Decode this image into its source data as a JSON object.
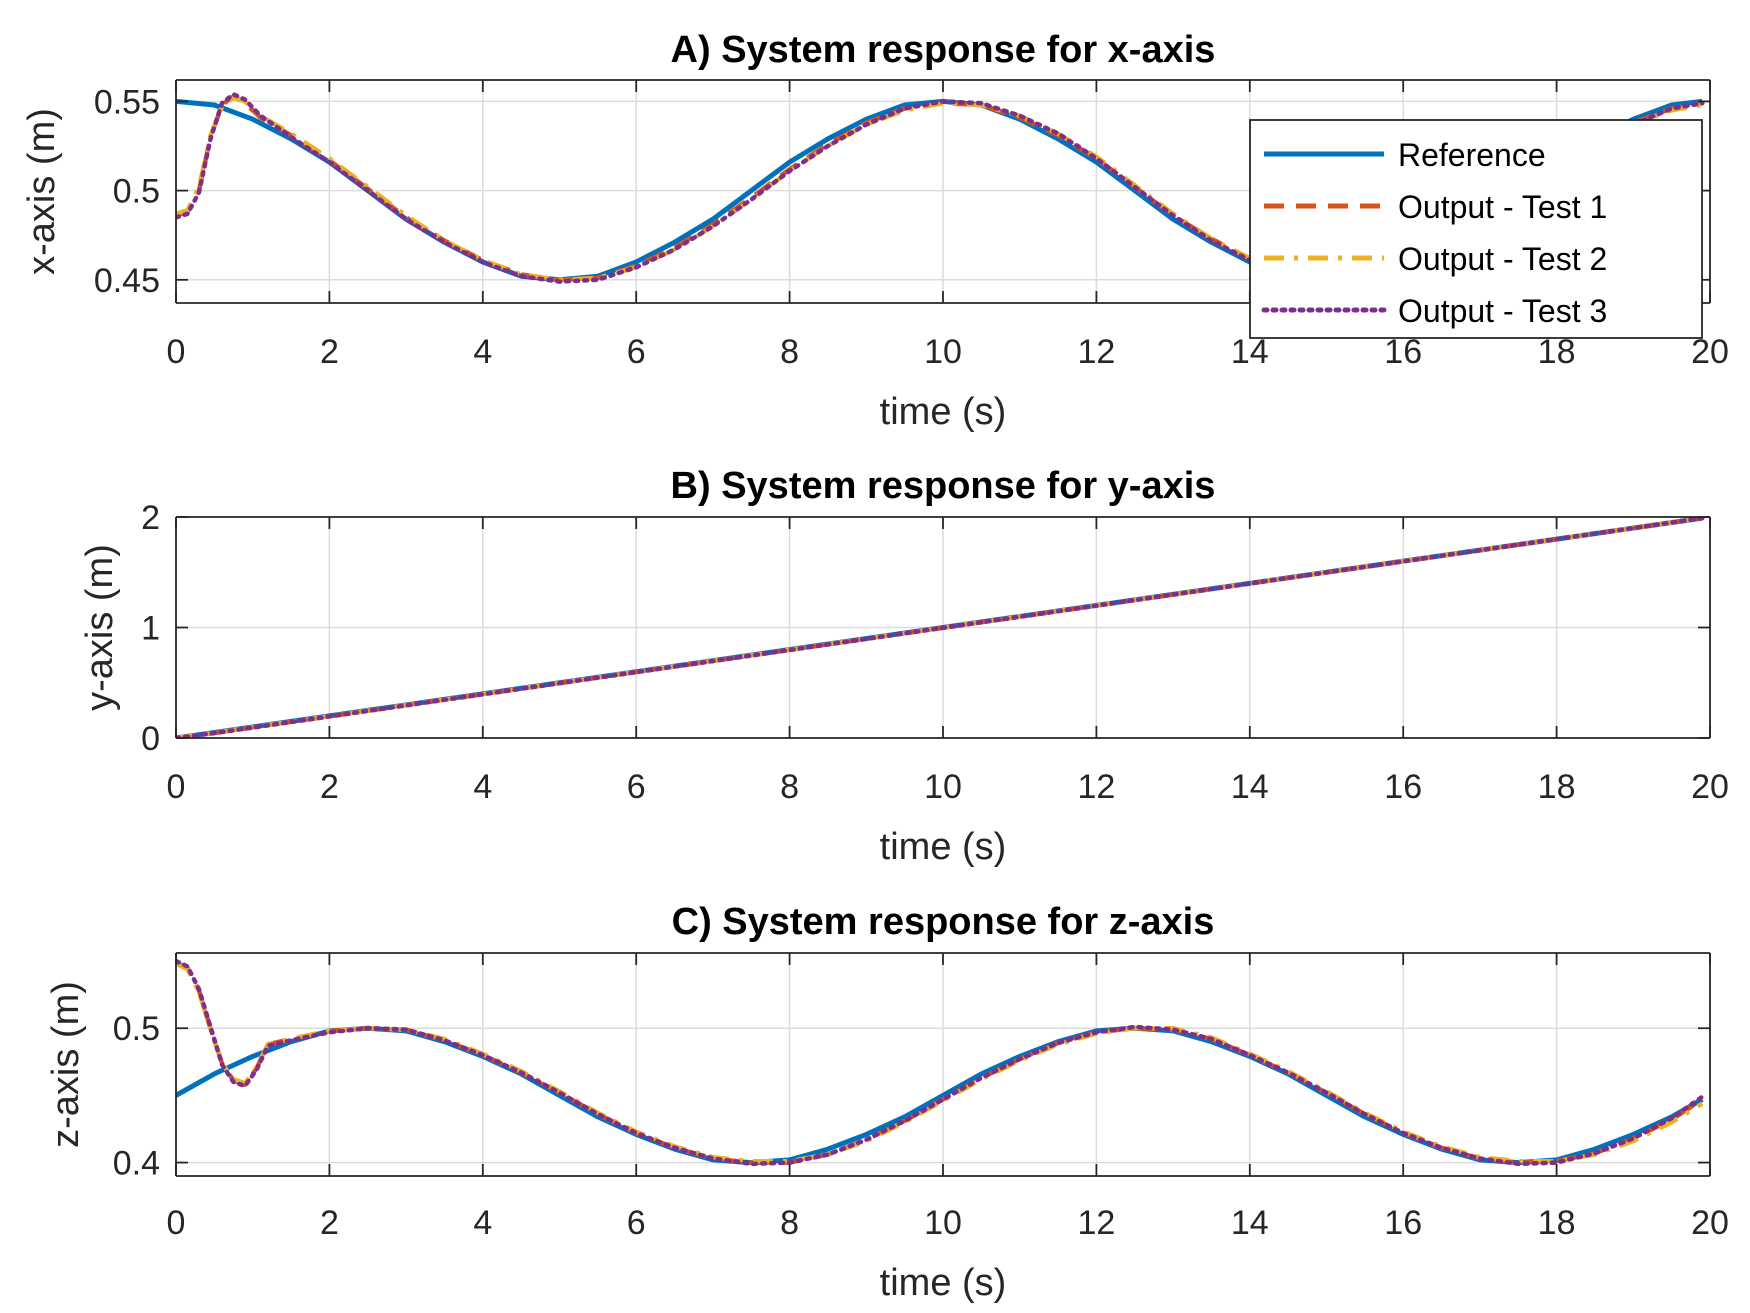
{
  "chart_data": [
    {
      "type": "line",
      "title": "A) System response for x-axis",
      "xlabel": "time (s)",
      "ylabel": "x-axis (m)",
      "xlim": [
        0,
        20
      ],
      "ylim": [
        0.437,
        0.562
      ],
      "xticks": [
        0,
        2,
        4,
        6,
        8,
        10,
        12,
        14,
        16,
        18,
        20
      ],
      "xticklabels": [
        "0",
        "2",
        "4",
        "6",
        "8",
        "10",
        "12",
        "14",
        "16",
        "18",
        "20"
      ],
      "yticks": [
        0.45,
        0.5,
        0.55
      ],
      "yticklabels": [
        "0.45",
        "0.5",
        "0.55"
      ],
      "grid": true,
      "legend_position": "top-right",
      "legend": [
        "Reference",
        "Output - Test 1",
        "Output - Test 2",
        "Output - Test 3"
      ],
      "series": [
        {
          "name": "Reference",
          "color": "#0072BD",
          "style": "solid",
          "x": [
            0,
            0.5,
            1,
            1.5,
            2,
            2.5,
            3,
            3.5,
            4,
            4.5,
            5,
            5.5,
            6,
            6.5,
            7,
            7.5,
            8,
            8.5,
            9,
            9.5,
            10,
            10.5,
            11,
            11.5,
            12,
            12.5,
            13,
            13.5,
            14,
            14.5,
            15,
            15.5,
            16,
            16.5,
            17,
            17.5,
            18,
            18.5,
            19,
            19.5,
            19.9
          ],
          "y": [
            0.55,
            0.548,
            0.54,
            0.529,
            0.516,
            0.5,
            0.484,
            0.471,
            0.46,
            0.452,
            0.45,
            0.452,
            0.46,
            0.471,
            0.484,
            0.5,
            0.516,
            0.529,
            0.54,
            0.548,
            0.55,
            0.548,
            0.54,
            0.529,
            0.516,
            0.5,
            0.484,
            0.471,
            0.46,
            0.452,
            0.45,
            0.452,
            0.46,
            0.471,
            0.484,
            0.5,
            0.516,
            0.529,
            0.54,
            0.548,
            0.55
          ]
        },
        {
          "name": "Output - Test 1",
          "color": "#D95319",
          "style": "dashed",
          "x": [
            0,
            0.15,
            0.3,
            0.45,
            0.6,
            0.75,
            0.9,
            1.1,
            1.5,
            2,
            2.5,
            3,
            3.5,
            4,
            4.5,
            5,
            5.5,
            6,
            6.5,
            7,
            7.5,
            8,
            8.5,
            9,
            9.5,
            10,
            10.5,
            11,
            11.5,
            12,
            12.5,
            13,
            13.5,
            14,
            14.5,
            15,
            15.5,
            16,
            16.5,
            17,
            17.5,
            18,
            18.5,
            19,
            19.5,
            19.9
          ],
          "y": [
            0.486,
            0.488,
            0.5,
            0.53,
            0.548,
            0.553,
            0.549,
            0.541,
            0.531,
            0.517,
            0.501,
            0.485,
            0.472,
            0.461,
            0.453,
            0.45,
            0.451,
            0.458,
            0.468,
            0.481,
            0.496,
            0.512,
            0.526,
            0.538,
            0.546,
            0.549,
            0.548,
            0.541,
            0.531,
            0.518,
            0.502,
            0.486,
            0.473,
            0.462,
            0.453,
            0.45,
            0.451,
            0.458,
            0.468,
            0.481,
            0.496,
            0.512,
            0.526,
            0.538,
            0.546,
            0.549
          ]
        },
        {
          "name": "Output - Test 2",
          "color": "#EDB120",
          "style": "dashdot",
          "x": [
            0,
            0.15,
            0.3,
            0.45,
            0.6,
            0.75,
            0.9,
            1.1,
            1.5,
            2,
            2.5,
            3,
            3.5,
            4,
            4.5,
            5,
            5.5,
            6,
            6.5,
            7,
            7.5,
            8,
            8.5,
            9,
            9.5,
            10,
            10.5,
            11,
            11.5,
            12,
            12.5,
            13,
            13.5,
            14,
            14.5,
            15,
            15.5,
            16,
            16.5,
            17,
            17.5,
            18,
            18.5,
            19,
            19.5,
            19.9
          ],
          "y": [
            0.487,
            0.489,
            0.502,
            0.531,
            0.547,
            0.552,
            0.55,
            0.542,
            0.532,
            0.518,
            0.502,
            0.486,
            0.472,
            0.461,
            0.453,
            0.45,
            0.451,
            0.457,
            0.467,
            0.48,
            0.495,
            0.511,
            0.525,
            0.537,
            0.545,
            0.549,
            0.548,
            0.542,
            0.532,
            0.519,
            0.503,
            0.487,
            0.473,
            0.462,
            0.454,
            0.45,
            0.451,
            0.457,
            0.467,
            0.48,
            0.495,
            0.511,
            0.525,
            0.537,
            0.545,
            0.548
          ]
        },
        {
          "name": "Output - Test 3",
          "color": "#7E2F8E",
          "style": "dotted",
          "x": [
            0,
            0.15,
            0.3,
            0.45,
            0.6,
            0.75,
            0.9,
            1.1,
            1.5,
            2,
            2.5,
            3,
            3.5,
            4,
            4.5,
            5,
            5.5,
            6,
            6.5,
            7,
            7.5,
            8,
            8.5,
            9,
            9.5,
            10,
            10.5,
            11,
            11.5,
            12,
            12.5,
            13,
            13.5,
            14,
            14.5,
            15,
            15.5,
            16,
            16.5,
            17,
            17.5,
            18,
            18.5,
            19,
            19.5,
            19.9
          ],
          "y": [
            0.485,
            0.487,
            0.499,
            0.529,
            0.549,
            0.554,
            0.551,
            0.542,
            0.53,
            0.516,
            0.5,
            0.484,
            0.471,
            0.46,
            0.452,
            0.449,
            0.45,
            0.457,
            0.467,
            0.48,
            0.495,
            0.511,
            0.525,
            0.537,
            0.546,
            0.55,
            0.549,
            0.542,
            0.532,
            0.518,
            0.502,
            0.486,
            0.472,
            0.461,
            0.453,
            0.449,
            0.45,
            0.457,
            0.467,
            0.48,
            0.495,
            0.511,
            0.525,
            0.537,
            0.546,
            0.549
          ]
        }
      ]
    },
    {
      "type": "line",
      "title": "B) System response for y-axis",
      "xlabel": "time (s)",
      "ylabel": "y-axis (m)",
      "xlim": [
        0,
        20
      ],
      "ylim": [
        0,
        2
      ],
      "xticks": [
        0,
        2,
        4,
        6,
        8,
        10,
        12,
        14,
        16,
        18,
        20
      ],
      "xticklabels": [
        "0",
        "2",
        "4",
        "6",
        "8",
        "10",
        "12",
        "14",
        "16",
        "18",
        "20"
      ],
      "yticks": [
        0,
        1,
        2
      ],
      "yticklabels": [
        "0",
        "1",
        "2"
      ],
      "grid": true,
      "series": [
        {
          "name": "Reference",
          "color": "#0072BD",
          "style": "solid",
          "x": [
            0,
            19.9
          ],
          "y": [
            0,
            1.99
          ]
        },
        {
          "name": "Output - Test 1",
          "color": "#D95319",
          "style": "dashed",
          "x": [
            0,
            0.5,
            19.9
          ],
          "y": [
            0,
            0.045,
            1.99
          ]
        },
        {
          "name": "Output - Test 2",
          "color": "#EDB120",
          "style": "dashdot",
          "x": [
            0,
            0.5,
            19.9
          ],
          "y": [
            0,
            0.046,
            1.99
          ]
        },
        {
          "name": "Output - Test 3",
          "color": "#7E2F8E",
          "style": "dotted",
          "x": [
            0,
            0.5,
            19.9
          ],
          "y": [
            0,
            0.044,
            1.99
          ]
        }
      ]
    },
    {
      "type": "line",
      "title": "C) System response for z-axis",
      "xlabel": "time (s)",
      "ylabel": "z-axis (m)",
      "xlim": [
        0,
        20
      ],
      "ylim": [
        0.39,
        0.556
      ],
      "xticks": [
        0,
        2,
        4,
        6,
        8,
        10,
        12,
        14,
        16,
        18,
        20
      ],
      "xticklabels": [
        "0",
        "2",
        "4",
        "6",
        "8",
        "10",
        "12",
        "14",
        "16",
        "18",
        "20"
      ],
      "yticks": [
        0.4,
        0.5
      ],
      "yticklabels": [
        "0.4",
        "0.5"
      ],
      "grid": true,
      "series": [
        {
          "name": "Reference",
          "color": "#0072BD",
          "style": "solid",
          "x": [
            0,
            0.5,
            1,
            1.5,
            2,
            2.5,
            3,
            3.5,
            4,
            4.5,
            5,
            5.5,
            6,
            6.5,
            7,
            7.5,
            8,
            8.5,
            9,
            9.5,
            10,
            10.5,
            11,
            11.5,
            12,
            12.5,
            13,
            13.5,
            14,
            14.5,
            15,
            15.5,
            16,
            16.5,
            17,
            17.5,
            18,
            18.5,
            19,
            19.5,
            19.9
          ],
          "y": [
            0.45,
            0.466,
            0.479,
            0.49,
            0.498,
            0.5,
            0.498,
            0.49,
            0.479,
            0.466,
            0.45,
            0.434,
            0.421,
            0.41,
            0.402,
            0.4,
            0.402,
            0.41,
            0.421,
            0.434,
            0.45,
            0.466,
            0.479,
            0.49,
            0.498,
            0.5,
            0.498,
            0.49,
            0.479,
            0.466,
            0.45,
            0.434,
            0.421,
            0.41,
            0.402,
            0.4,
            0.402,
            0.41,
            0.421,
            0.434,
            0.447
          ]
        },
        {
          "name": "Output - Test 1",
          "color": "#D95319",
          "style": "dashed",
          "x": [
            0,
            0.15,
            0.3,
            0.45,
            0.6,
            0.75,
            0.9,
            1.05,
            1.2,
            1.5,
            2,
            2.5,
            3,
            3.5,
            4,
            4.5,
            5,
            5.5,
            6,
            6.5,
            7,
            7.5,
            8,
            8.5,
            9,
            9.5,
            10,
            10.5,
            11,
            11.5,
            12,
            12.5,
            13,
            13.5,
            14,
            14.5,
            15,
            15.5,
            16,
            16.5,
            17,
            17.5,
            18,
            18.5,
            19,
            19.5,
            19.9
          ],
          "y": [
            0.549,
            0.545,
            0.528,
            0.5,
            0.474,
            0.461,
            0.458,
            0.47,
            0.488,
            0.492,
            0.498,
            0.5,
            0.499,
            0.491,
            0.48,
            0.467,
            0.452,
            0.436,
            0.422,
            0.411,
            0.403,
            0.4,
            0.4,
            0.406,
            0.417,
            0.431,
            0.447,
            0.463,
            0.477,
            0.489,
            0.497,
            0.5,
            0.499,
            0.492,
            0.48,
            0.467,
            0.452,
            0.436,
            0.422,
            0.411,
            0.403,
            0.4,
            0.401,
            0.407,
            0.418,
            0.432,
            0.447
          ]
        },
        {
          "name": "Output - Test 2",
          "color": "#EDB120",
          "style": "dashdot",
          "x": [
            0,
            0.15,
            0.3,
            0.45,
            0.6,
            0.75,
            0.9,
            1.05,
            1.2,
            1.5,
            2,
            2.5,
            3,
            3.5,
            4,
            4.5,
            5,
            5.5,
            6,
            6.5,
            7,
            7.5,
            8,
            8.5,
            9,
            9.5,
            10,
            10.5,
            11,
            11.5,
            12,
            12.5,
            13,
            13.5,
            14,
            14.5,
            15,
            15.5,
            16,
            16.5,
            17,
            17.5,
            18,
            18.5,
            19,
            19.5,
            19.9
          ],
          "y": [
            0.548,
            0.544,
            0.527,
            0.499,
            0.474,
            0.462,
            0.459,
            0.471,
            0.488,
            0.492,
            0.498,
            0.5,
            0.499,
            0.492,
            0.481,
            0.468,
            0.453,
            0.437,
            0.423,
            0.412,
            0.404,
            0.401,
            0.401,
            0.406,
            0.416,
            0.43,
            0.446,
            0.462,
            0.476,
            0.488,
            0.496,
            0.5,
            0.5,
            0.493,
            0.481,
            0.468,
            0.453,
            0.437,
            0.423,
            0.412,
            0.404,
            0.401,
            0.401,
            0.406,
            0.416,
            0.43,
            0.444
          ]
        },
        {
          "name": "Output - Test 3",
          "color": "#7E2F8E",
          "style": "dotted",
          "x": [
            0,
            0.15,
            0.3,
            0.45,
            0.6,
            0.75,
            0.9,
            1.05,
            1.2,
            1.5,
            2,
            2.5,
            3,
            3.5,
            4,
            4.5,
            5,
            5.5,
            6,
            6.5,
            7,
            7.5,
            8,
            8.5,
            9,
            9.5,
            10,
            10.5,
            11,
            11.5,
            12,
            12.5,
            13,
            13.5,
            14,
            14.5,
            15,
            15.5,
            16,
            16.5,
            17,
            17.5,
            18,
            18.5,
            19,
            19.5,
            19.9
          ],
          "y": [
            0.55,
            0.546,
            0.529,
            0.501,
            0.473,
            0.46,
            0.457,
            0.469,
            0.487,
            0.491,
            0.497,
            0.5,
            0.499,
            0.491,
            0.48,
            0.467,
            0.452,
            0.436,
            0.422,
            0.411,
            0.403,
            0.399,
            0.4,
            0.406,
            0.417,
            0.431,
            0.447,
            0.463,
            0.477,
            0.489,
            0.497,
            0.501,
            0.499,
            0.492,
            0.48,
            0.467,
            0.452,
            0.436,
            0.422,
            0.411,
            0.403,
            0.399,
            0.4,
            0.407,
            0.418,
            0.433,
            0.449
          ]
        }
      ]
    }
  ]
}
